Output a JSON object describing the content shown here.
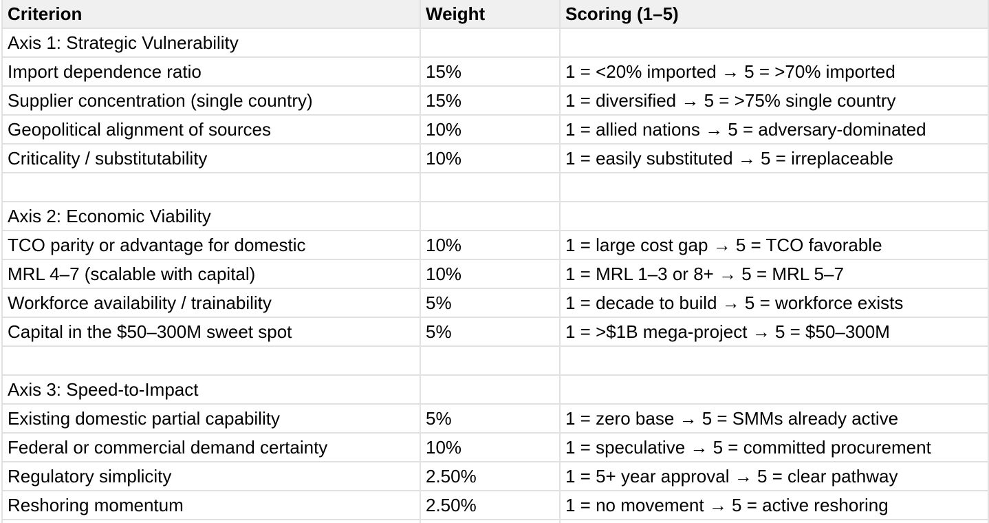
{
  "colors": {
    "header_bg": "#f0f0f0",
    "gridline": "#e1e1e1",
    "row_bg": "#ffffff",
    "text": "#000000"
  },
  "table": {
    "columns": [
      "Criterion",
      "Weight",
      "Scoring (1–5)"
    ],
    "rows": [
      {
        "criterion": "Axis 1: Strategic Vulnerability",
        "weight": "",
        "scoring": ""
      },
      {
        "criterion": "Import dependence ratio",
        "weight": "15%",
        "scoring": "1 = <20% imported → 5 = >70% imported"
      },
      {
        "criterion": "Supplier concentration (single country)",
        "weight": "15%",
        "scoring": "1 = diversified → 5 = >75% single country"
      },
      {
        "criterion": "Geopolitical alignment of sources",
        "weight": "10%",
        "scoring": "1 = allied nations → 5 = adversary-dominated"
      },
      {
        "criterion": "Criticality / substitutability",
        "weight": "10%",
        "scoring": "1 = easily substituted → 5 = irreplaceable"
      },
      {
        "criterion": "",
        "weight": "",
        "scoring": ""
      },
      {
        "criterion": "Axis 2: Economic Viability",
        "weight": "",
        "scoring": ""
      },
      {
        "criterion": "TCO parity or advantage for domestic",
        "weight": "10%",
        "scoring": "1 = large cost gap → 5 = TCO favorable"
      },
      {
        "criterion": "MRL 4–7 (scalable with capital)",
        "weight": "10%",
        "scoring": "1 = MRL 1–3 or 8+ → 5 = MRL 5–7"
      },
      {
        "criterion": "Workforce availability / trainability",
        "weight": "5%",
        "scoring": "1 = decade to build → 5 = workforce exists"
      },
      {
        "criterion": "Capital in the $50–300M sweet spot",
        "weight": "5%",
        "scoring": "1 = >$1B mega-project → 5 = $50–300M"
      },
      {
        "criterion": "",
        "weight": "",
        "scoring": ""
      },
      {
        "criterion": "Axis 3: Speed-to-Impact",
        "weight": "",
        "scoring": ""
      },
      {
        "criterion": "Existing domestic partial capability",
        "weight": "5%",
        "scoring": "1 = zero base → 5 = SMMs already active"
      },
      {
        "criterion": "Federal or commercial demand certainty",
        "weight": "10%",
        "scoring": "1 = speculative → 5 = committed procurement"
      },
      {
        "criterion": "Regulatory simplicity",
        "weight": "2.50%",
        "scoring": "1 = 5+ year approval → 5 = clear pathway"
      },
      {
        "criterion": "Reshoring momentum",
        "weight": "2.50%",
        "scoring": "1 = no movement → 5 = active reshoring"
      },
      {
        "criterion": "",
        "weight": "",
        "scoring": ""
      }
    ]
  }
}
